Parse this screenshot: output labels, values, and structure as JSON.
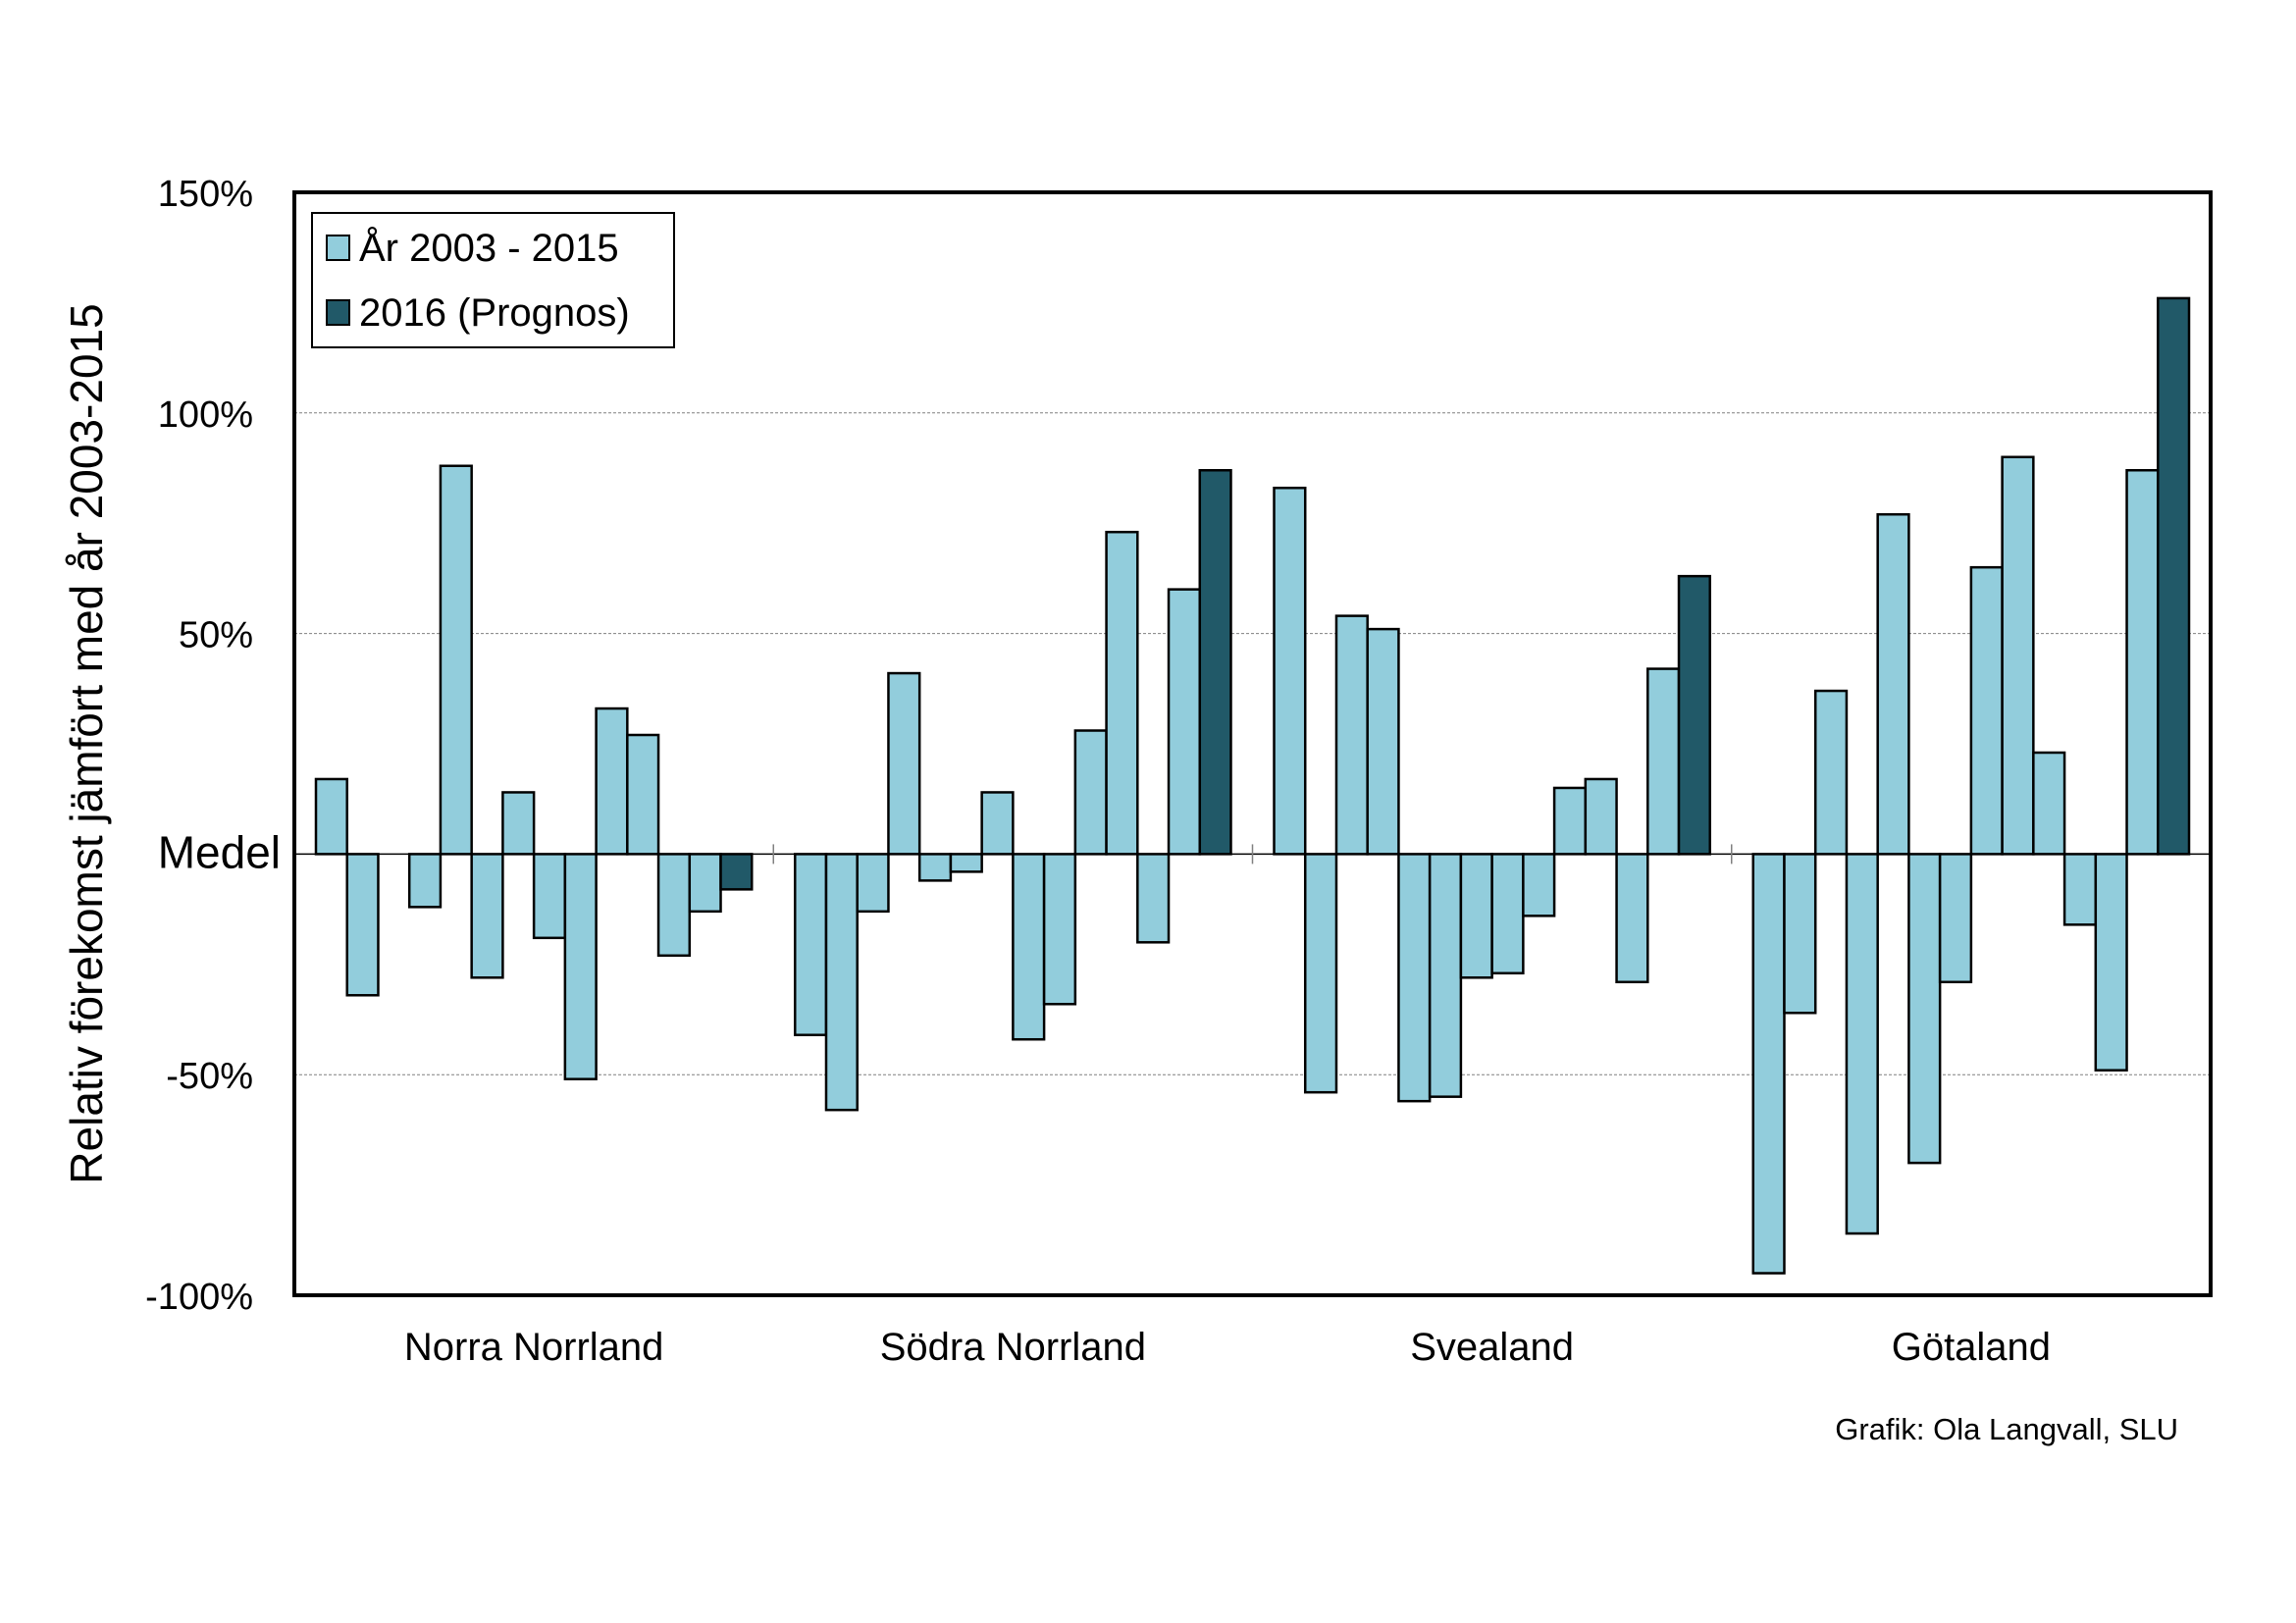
{
  "chart_data": {
    "type": "bar",
    "ylabel": "Relativ förekomst jämfört med år 2003-2015",
    "ylim": [
      -100,
      150
    ],
    "yticks": [
      {
        "value": 150,
        "label": "150%"
      },
      {
        "value": 100,
        "label": "100%"
      },
      {
        "value": 50,
        "label": "50%"
      },
      {
        "value": 0,
        "label": "Medel"
      },
      {
        "value": -50,
        "label": "-50%"
      },
      {
        "value": -100,
        "label": "-100%"
      }
    ],
    "grid": true,
    "legend_position": "top-left",
    "colors": {
      "historical": "#92CDDC",
      "forecast": "#215968"
    },
    "legend": [
      {
        "label": "År 2003 - 2015",
        "color": "#92CDDC"
      },
      {
        "label": "2016 (Prognos)",
        "color": "#215968"
      }
    ],
    "credit": "Grafik: Ola Langvall, SLU",
    "groups": [
      {
        "name": "Norra Norrland",
        "historical": [
          17,
          -32,
          0,
          -12,
          88,
          -28,
          14,
          -19,
          -51,
          33,
          27,
          -23,
          -13
        ],
        "forecast": -8
      },
      {
        "name": "Södra Norrland",
        "historical": [
          -41,
          -58,
          -13,
          41,
          -6,
          -4,
          14,
          -42,
          -34,
          28,
          73,
          -20,
          60
        ],
        "forecast": 87
      },
      {
        "name": "Svealand",
        "historical": [
          83,
          -54,
          54,
          51,
          -56,
          -55,
          -28,
          -27,
          -14,
          15,
          17,
          -29,
          42
        ],
        "forecast": 63
      },
      {
        "name": "Götaland",
        "historical": [
          -95,
          -36,
          37,
          -86,
          77,
          -70,
          -29,
          65,
          90,
          23,
          -16,
          -49,
          87
        ],
        "forecast": 126
      }
    ]
  }
}
